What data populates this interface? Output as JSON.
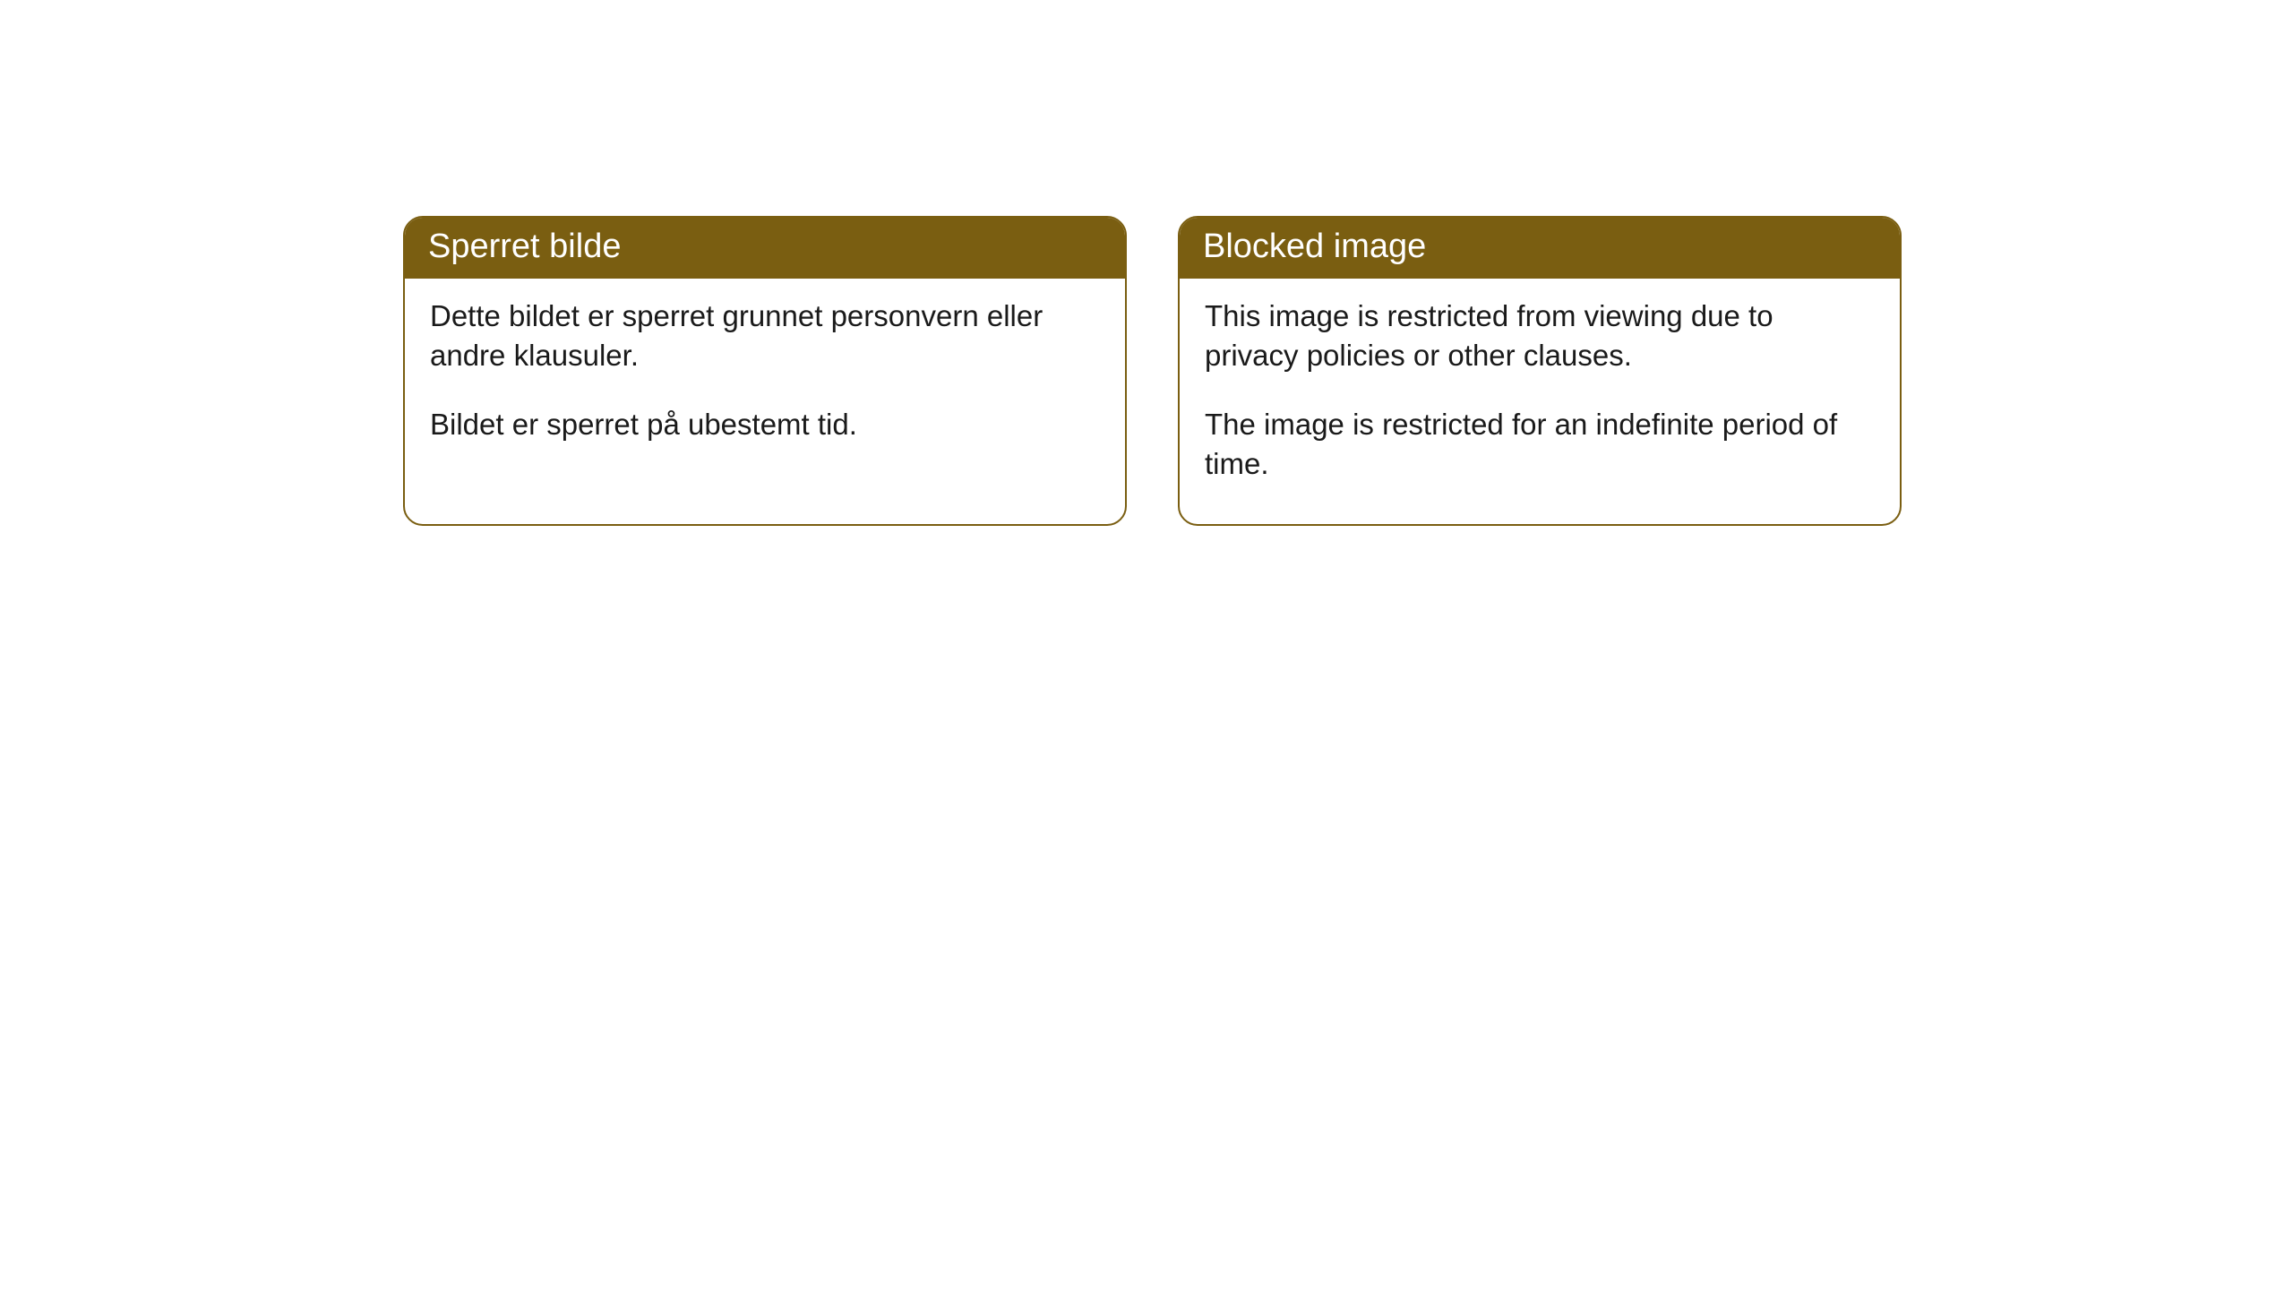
{
  "cards": [
    {
      "title": "Sperret bilde",
      "paragraph1": "Dette bildet er sperret grunnet personvern eller andre klausuler.",
      "paragraph2": "Bildet er sperret på ubestemt tid."
    },
    {
      "title": "Blocked image",
      "paragraph1": "This image is restricted from viewing due to privacy policies or other clauses.",
      "paragraph2": "The image is restricted for an indefinite period of time."
    }
  ],
  "style": {
    "header_background": "#7a5e11",
    "header_text_color": "#ffffff",
    "border_color": "#7a5e11",
    "body_background": "#ffffff",
    "body_text_color": "#1a1a1a",
    "border_radius": 22,
    "header_fontsize": 38,
    "body_fontsize": 33
  }
}
